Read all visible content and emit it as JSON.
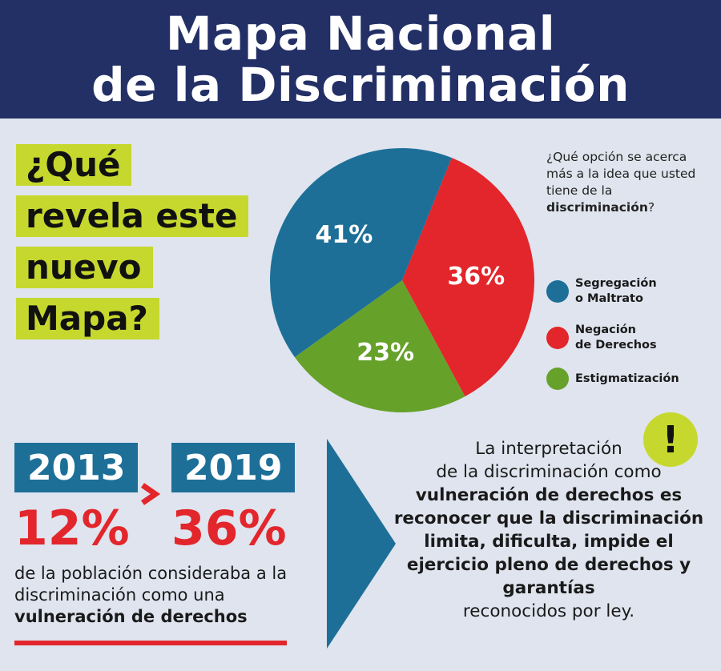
{
  "header": {
    "title_line1": "Mapa Nacional",
    "title_line2": "de la Discriminación",
    "bg_color": "#233066"
  },
  "question_box": {
    "lines": [
      "¿Qué",
      "revela este",
      "nuevo",
      "Mapa?"
    ],
    "bg_color": "#c6d82e"
  },
  "survey": {
    "question_part1": "¿Qué opción se acerca más a la idea que usted tiene de la ",
    "question_bold": "discriminación",
    "question_end": "?"
  },
  "chart_data": {
    "type": "pie",
    "slices": [
      {
        "name": "Segregación o Maltrato",
        "value": 41,
        "label": "41%",
        "color": "#1d6f98"
      },
      {
        "name": "Negación de Derechos",
        "value": 36,
        "label": "36%",
        "color": "#e2262b"
      },
      {
        "name": "Estigmatización",
        "value": 23,
        "label": "23%",
        "color": "#66a12a"
      }
    ]
  },
  "legend": [
    {
      "label": "Segregación\no Maltrato",
      "color": "#1d6f98"
    },
    {
      "label": "Negación\nde Derechos",
      "color": "#e2262b"
    },
    {
      "label": "Estigmatización",
      "color": "#66a12a"
    }
  ],
  "comparison": {
    "year1": "2013",
    "year2": "2019",
    "pct1": "12%",
    "pct2": "36%",
    "desc_part1": "de la población consideraba a la discriminación como una",
    "desc_bold": "vulneración de derechos",
    "accent_red": "#e2262b",
    "accent_blue": "#1d6f98"
  },
  "interpretation": {
    "icon": "exclamation-icon",
    "line1": "La interpretación",
    "line2": "de la discriminación como",
    "bold_text": "vulneración de derechos es reconocer que la discriminación limita, dificulta, impide el ejercicio pleno de derechos y garantías",
    "end_text": "reconocidos por ley."
  }
}
